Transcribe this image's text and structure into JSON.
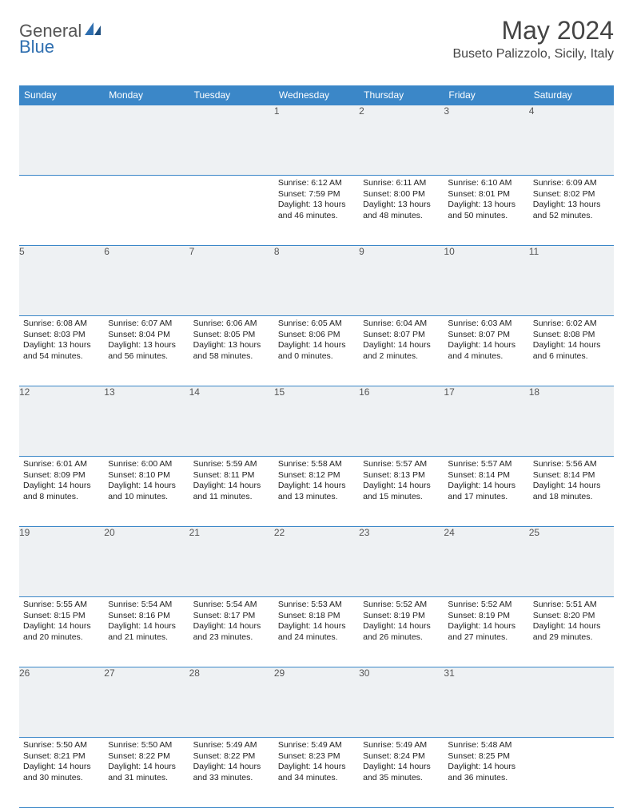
{
  "colors": {
    "header_bg": "#3b87c8",
    "header_text": "#ffffff",
    "daynum_bg": "#eef1f3",
    "border": "#3b87c8",
    "logo_gray": "#555555",
    "logo_blue": "#2f6fb0"
  },
  "logo": {
    "part1": "General",
    "part2": "Blue"
  },
  "title": "May 2024",
  "location": "Buseto Palizzolo, Sicily, Italy",
  "weekdays": [
    "Sunday",
    "Monday",
    "Tuesday",
    "Wednesday",
    "Thursday",
    "Friday",
    "Saturday"
  ],
  "weeks": [
    [
      null,
      null,
      null,
      {
        "n": "1",
        "sr": "6:12 AM",
        "ss": "7:59 PM",
        "dlA": "Daylight: 13 hours",
        "dlB": "and 46 minutes."
      },
      {
        "n": "2",
        "sr": "6:11 AM",
        "ss": "8:00 PM",
        "dlA": "Daylight: 13 hours",
        "dlB": "and 48 minutes."
      },
      {
        "n": "3",
        "sr": "6:10 AM",
        "ss": "8:01 PM",
        "dlA": "Daylight: 13 hours",
        "dlB": "and 50 minutes."
      },
      {
        "n": "4",
        "sr": "6:09 AM",
        "ss": "8:02 PM",
        "dlA": "Daylight: 13 hours",
        "dlB": "and 52 minutes."
      }
    ],
    [
      {
        "n": "5",
        "sr": "6:08 AM",
        "ss": "8:03 PM",
        "dlA": "Daylight: 13 hours",
        "dlB": "and 54 minutes."
      },
      {
        "n": "6",
        "sr": "6:07 AM",
        "ss": "8:04 PM",
        "dlA": "Daylight: 13 hours",
        "dlB": "and 56 minutes."
      },
      {
        "n": "7",
        "sr": "6:06 AM",
        "ss": "8:05 PM",
        "dlA": "Daylight: 13 hours",
        "dlB": "and 58 minutes."
      },
      {
        "n": "8",
        "sr": "6:05 AM",
        "ss": "8:06 PM",
        "dlA": "Daylight: 14 hours",
        "dlB": "and 0 minutes."
      },
      {
        "n": "9",
        "sr": "6:04 AM",
        "ss": "8:07 PM",
        "dlA": "Daylight: 14 hours",
        "dlB": "and 2 minutes."
      },
      {
        "n": "10",
        "sr": "6:03 AM",
        "ss": "8:07 PM",
        "dlA": "Daylight: 14 hours",
        "dlB": "and 4 minutes."
      },
      {
        "n": "11",
        "sr": "6:02 AM",
        "ss": "8:08 PM",
        "dlA": "Daylight: 14 hours",
        "dlB": "and 6 minutes."
      }
    ],
    [
      {
        "n": "12",
        "sr": "6:01 AM",
        "ss": "8:09 PM",
        "dlA": "Daylight: 14 hours",
        "dlB": "and 8 minutes."
      },
      {
        "n": "13",
        "sr": "6:00 AM",
        "ss": "8:10 PM",
        "dlA": "Daylight: 14 hours",
        "dlB": "and 10 minutes."
      },
      {
        "n": "14",
        "sr": "5:59 AM",
        "ss": "8:11 PM",
        "dlA": "Daylight: 14 hours",
        "dlB": "and 11 minutes."
      },
      {
        "n": "15",
        "sr": "5:58 AM",
        "ss": "8:12 PM",
        "dlA": "Daylight: 14 hours",
        "dlB": "and 13 minutes."
      },
      {
        "n": "16",
        "sr": "5:57 AM",
        "ss": "8:13 PM",
        "dlA": "Daylight: 14 hours",
        "dlB": "and 15 minutes."
      },
      {
        "n": "17",
        "sr": "5:57 AM",
        "ss": "8:14 PM",
        "dlA": "Daylight: 14 hours",
        "dlB": "and 17 minutes."
      },
      {
        "n": "18",
        "sr": "5:56 AM",
        "ss": "8:14 PM",
        "dlA": "Daylight: 14 hours",
        "dlB": "and 18 minutes."
      }
    ],
    [
      {
        "n": "19",
        "sr": "5:55 AM",
        "ss": "8:15 PM",
        "dlA": "Daylight: 14 hours",
        "dlB": "and 20 minutes."
      },
      {
        "n": "20",
        "sr": "5:54 AM",
        "ss": "8:16 PM",
        "dlA": "Daylight: 14 hours",
        "dlB": "and 21 minutes."
      },
      {
        "n": "21",
        "sr": "5:54 AM",
        "ss": "8:17 PM",
        "dlA": "Daylight: 14 hours",
        "dlB": "and 23 minutes."
      },
      {
        "n": "22",
        "sr": "5:53 AM",
        "ss": "8:18 PM",
        "dlA": "Daylight: 14 hours",
        "dlB": "and 24 minutes."
      },
      {
        "n": "23",
        "sr": "5:52 AM",
        "ss": "8:19 PM",
        "dlA": "Daylight: 14 hours",
        "dlB": "and 26 minutes."
      },
      {
        "n": "24",
        "sr": "5:52 AM",
        "ss": "8:19 PM",
        "dlA": "Daylight: 14 hours",
        "dlB": "and 27 minutes."
      },
      {
        "n": "25",
        "sr": "5:51 AM",
        "ss": "8:20 PM",
        "dlA": "Daylight: 14 hours",
        "dlB": "and 29 minutes."
      }
    ],
    [
      {
        "n": "26",
        "sr": "5:50 AM",
        "ss": "8:21 PM",
        "dlA": "Daylight: 14 hours",
        "dlB": "and 30 minutes."
      },
      {
        "n": "27",
        "sr": "5:50 AM",
        "ss": "8:22 PM",
        "dlA": "Daylight: 14 hours",
        "dlB": "and 31 minutes."
      },
      {
        "n": "28",
        "sr": "5:49 AM",
        "ss": "8:22 PM",
        "dlA": "Daylight: 14 hours",
        "dlB": "and 33 minutes."
      },
      {
        "n": "29",
        "sr": "5:49 AM",
        "ss": "8:23 PM",
        "dlA": "Daylight: 14 hours",
        "dlB": "and 34 minutes."
      },
      {
        "n": "30",
        "sr": "5:49 AM",
        "ss": "8:24 PM",
        "dlA": "Daylight: 14 hours",
        "dlB": "and 35 minutes."
      },
      {
        "n": "31",
        "sr": "5:48 AM",
        "ss": "8:25 PM",
        "dlA": "Daylight: 14 hours",
        "dlB": "and 36 minutes."
      },
      null
    ]
  ]
}
